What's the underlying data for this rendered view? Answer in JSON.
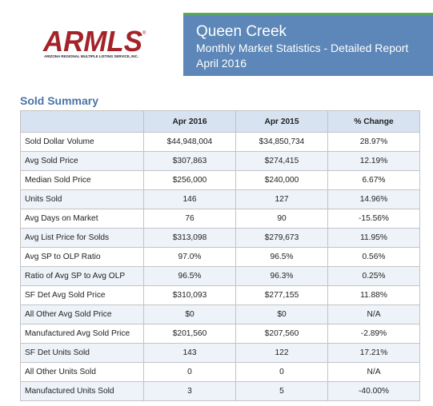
{
  "logo": {
    "wordmark": "ARMLS",
    "tagline": "ARIZONA REGIONAL MULTIPLE LISTING SERVICE, INC.",
    "color": "#a32329"
  },
  "banner": {
    "title": "Queen Creek",
    "subtitle": "Monthly Market Statistics - Detailed Report",
    "date": "April 2016",
    "background": "#5c87b8",
    "accent": "#5aa85c"
  },
  "section_title": "Sold Summary",
  "table": {
    "headers": [
      "",
      "Apr 2016",
      "Apr 2015",
      "% Change"
    ],
    "rows": [
      {
        "label": "Sold Dollar Volume",
        "a": "$44,948,004",
        "b": "$34,850,734",
        "pct": "28.97%"
      },
      {
        "label": "Avg Sold Price",
        "a": "$307,863",
        "b": "$274,415",
        "pct": "12.19%"
      },
      {
        "label": "Median Sold Price",
        "a": "$256,000",
        "b": "$240,000",
        "pct": "6.67%"
      },
      {
        "label": "Units Sold",
        "a": "146",
        "b": "127",
        "pct": "14.96%"
      },
      {
        "label": "Avg Days on Market",
        "a": "76",
        "b": "90",
        "pct": "-15.56%"
      },
      {
        "label": "Avg List Price for Solds",
        "a": "$313,098",
        "b": "$279,673",
        "pct": "11.95%"
      },
      {
        "label": "Avg SP to OLP Ratio",
        "a": "97.0%",
        "b": "96.5%",
        "pct": "0.56%"
      },
      {
        "label": "Ratio of Avg SP to Avg OLP",
        "a": "96.5%",
        "b": "96.3%",
        "pct": "0.25%"
      },
      {
        "label": "SF Det Avg Sold Price",
        "a": "$310,093",
        "b": "$277,155",
        "pct": "11.88%"
      },
      {
        "label": "All Other Avg Sold Price",
        "a": "$0",
        "b": "$0",
        "pct": "N/A"
      },
      {
        "label": "Manufactured Avg Sold Price",
        "a": "$201,560",
        "b": "$207,560",
        "pct": "-2.89%"
      },
      {
        "label": "SF Det Units Sold",
        "a": "143",
        "b": "122",
        "pct": "17.21%"
      },
      {
        "label": "All Other Units Sold",
        "a": "0",
        "b": "0",
        "pct": "N/A"
      },
      {
        "label": "Manufactured Units Sold",
        "a": "3",
        "b": "5",
        "pct": "-40.00%"
      }
    ]
  }
}
